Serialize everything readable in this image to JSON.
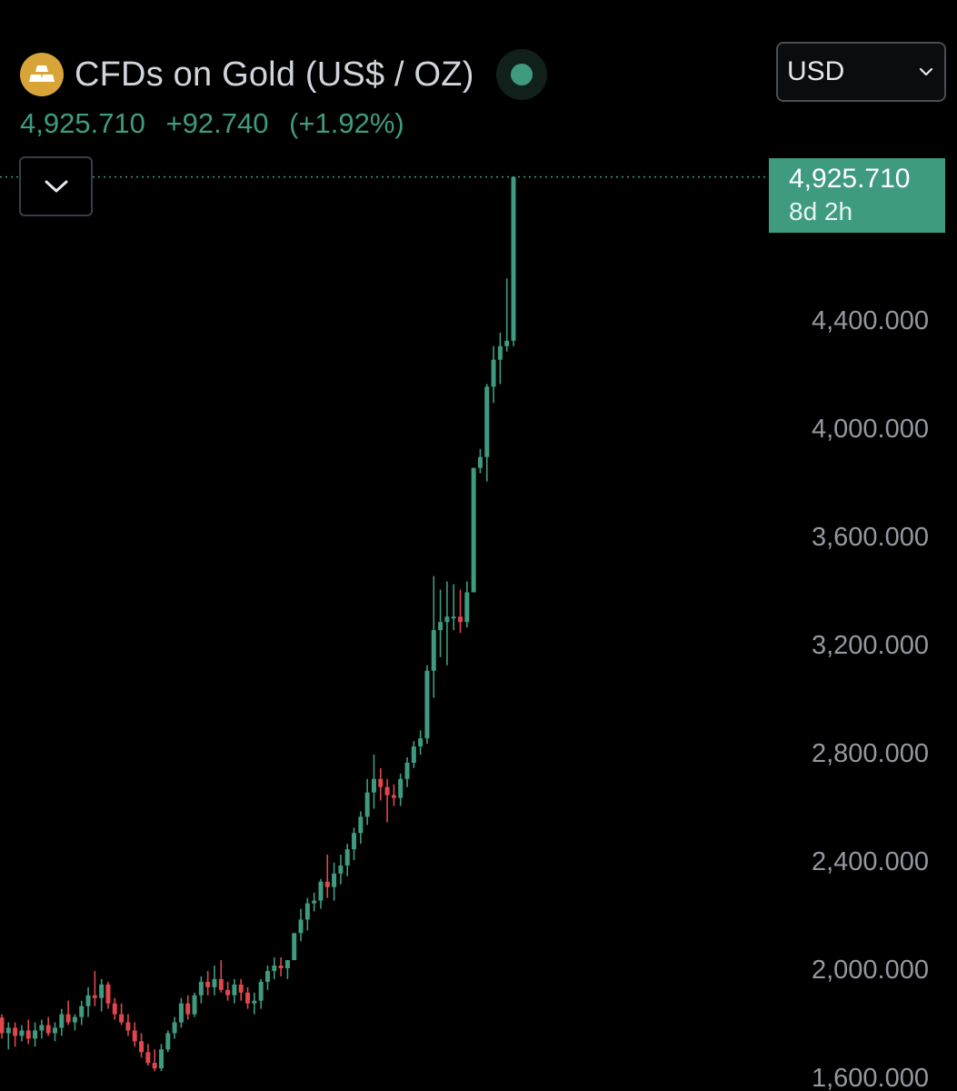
{
  "header": {
    "symbol_title": "CFDs on Gold (US$ / OZ)",
    "icon": "gold-bars-icon",
    "status": "market-open",
    "status_color": "#3f9b80"
  },
  "quote": {
    "last": "4,925.710",
    "change": "+92.740",
    "change_pct": "(+1.92%)",
    "color": "#3f9b80"
  },
  "currency": {
    "selected": "USD"
  },
  "price_tag": {
    "price": "4,925.710",
    "countdown": "8d 2h"
  },
  "colors": {
    "up": "#3f9b80",
    "down": "#e0474c",
    "background": "#000000",
    "axis_text": "#9598a1"
  },
  "chart_data": {
    "type": "candlestick",
    "y_axis_labels": [
      "4,400.000",
      "4,000.000",
      "3,600.000",
      "3,200.000",
      "2,800.000",
      "2,400.000",
      "2,000.000",
      "1,600.000"
    ],
    "y_ticks": [
      4400,
      4000,
      3600,
      3200,
      2800,
      2400,
      2000,
      1600
    ],
    "ylim": [
      1560,
      5000
    ],
    "last_price": 4925.71,
    "grid": false,
    "candles": [
      [
        1818,
        1830,
        1740,
        1760
      ],
      [
        1760,
        1800,
        1700,
        1780
      ],
      [
        1780,
        1800,
        1710,
        1750
      ],
      [
        1750,
        1790,
        1730,
        1770
      ],
      [
        1770,
        1810,
        1720,
        1740
      ],
      [
        1740,
        1800,
        1710,
        1770
      ],
      [
        1770,
        1810,
        1740,
        1790
      ],
      [
        1790,
        1820,
        1750,
        1760
      ],
      [
        1760,
        1800,
        1730,
        1780
      ],
      [
        1780,
        1850,
        1750,
        1830
      ],
      [
        1830,
        1880,
        1790,
        1800
      ],
      [
        1800,
        1830,
        1770,
        1820
      ],
      [
        1820,
        1880,
        1790,
        1860
      ],
      [
        1860,
        1930,
        1820,
        1900
      ],
      [
        1900,
        1990,
        1860,
        1890
      ],
      [
        1890,
        1960,
        1840,
        1940
      ],
      [
        1940,
        1950,
        1850,
        1870
      ],
      [
        1870,
        1890,
        1810,
        1830
      ],
      [
        1830,
        1870,
        1790,
        1800
      ],
      [
        1800,
        1830,
        1750,
        1770
      ],
      [
        1770,
        1800,
        1710,
        1730
      ],
      [
        1730,
        1760,
        1670,
        1690
      ],
      [
        1690,
        1720,
        1640,
        1650
      ],
      [
        1650,
        1700,
        1620,
        1630
      ],
      [
        1630,
        1720,
        1620,
        1700
      ],
      [
        1700,
        1770,
        1690,
        1760
      ],
      [
        1760,
        1820,
        1740,
        1800
      ],
      [
        1800,
        1890,
        1780,
        1870
      ],
      [
        1870,
        1900,
        1810,
        1830
      ],
      [
        1830,
        1910,
        1820,
        1900
      ],
      [
        1900,
        1970,
        1870,
        1950
      ],
      [
        1950,
        1990,
        1900,
        1930
      ],
      [
        1930,
        2010,
        1900,
        1960
      ],
      [
        1960,
        2030,
        1910,
        1920
      ],
      [
        1920,
        1950,
        1880,
        1900
      ],
      [
        1900,
        1960,
        1870,
        1940
      ],
      [
        1940,
        1960,
        1880,
        1910
      ],
      [
        1910,
        1930,
        1850,
        1870
      ],
      [
        1870,
        1910,
        1830,
        1880
      ],
      [
        1880,
        1960,
        1850,
        1950
      ],
      [
        1950,
        2010,
        1920,
        1990
      ],
      [
        1990,
        2040,
        1960,
        2010
      ],
      [
        2010,
        2040,
        1970,
        2000
      ],
      [
        2000,
        2030,
        1960,
        2030
      ],
      [
        2030,
        2130,
        2030,
        2130
      ],
      [
        2130,
        2220,
        2100,
        2180
      ],
      [
        2180,
        2260,
        2140,
        2240
      ],
      [
        2240,
        2280,
        2210,
        2250
      ],
      [
        2250,
        2330,
        2220,
        2320
      ],
      [
        2320,
        2420,
        2260,
        2300
      ],
      [
        2300,
        2390,
        2250,
        2350
      ],
      [
        2350,
        2420,
        2310,
        2380
      ],
      [
        2380,
        2460,
        2340,
        2440
      ],
      [
        2440,
        2520,
        2400,
        2500
      ],
      [
        2500,
        2580,
        2460,
        2560
      ],
      [
        2560,
        2700,
        2530,
        2650
      ],
      [
        2650,
        2790,
        2590,
        2700
      ],
      [
        2700,
        2740,
        2620,
        2670
      ],
      [
        2670,
        2700,
        2540,
        2640
      ],
      [
        2640,
        2680,
        2600,
        2630
      ],
      [
        2630,
        2720,
        2600,
        2700
      ],
      [
        2700,
        2780,
        2670,
        2760
      ],
      [
        2760,
        2840,
        2740,
        2820
      ],
      [
        2820,
        2880,
        2790,
        2850
      ],
      [
        2850,
        3120,
        2830,
        3100
      ],
      [
        3100,
        3450,
        3000,
        3250
      ],
      [
        3250,
        3400,
        3150,
        3280
      ],
      [
        3280,
        3430,
        3120,
        3300
      ],
      [
        3300,
        3420,
        3250,
        3300
      ],
      [
        3300,
        3400,
        3240,
        3280
      ],
      [
        3280,
        3430,
        3260,
        3390
      ],
      [
        3390,
        3850,
        3390,
        3850
      ],
      [
        3850,
        3920,
        3830,
        3890
      ],
      [
        3890,
        4160,
        3800,
        4150
      ],
      [
        4150,
        4300,
        4090,
        4250
      ],
      [
        4250,
        4350,
        4160,
        4300
      ],
      [
        4300,
        4550,
        4280,
        4320
      ],
      [
        4320,
        4925.71,
        4300,
        4925.71
      ]
    ]
  }
}
